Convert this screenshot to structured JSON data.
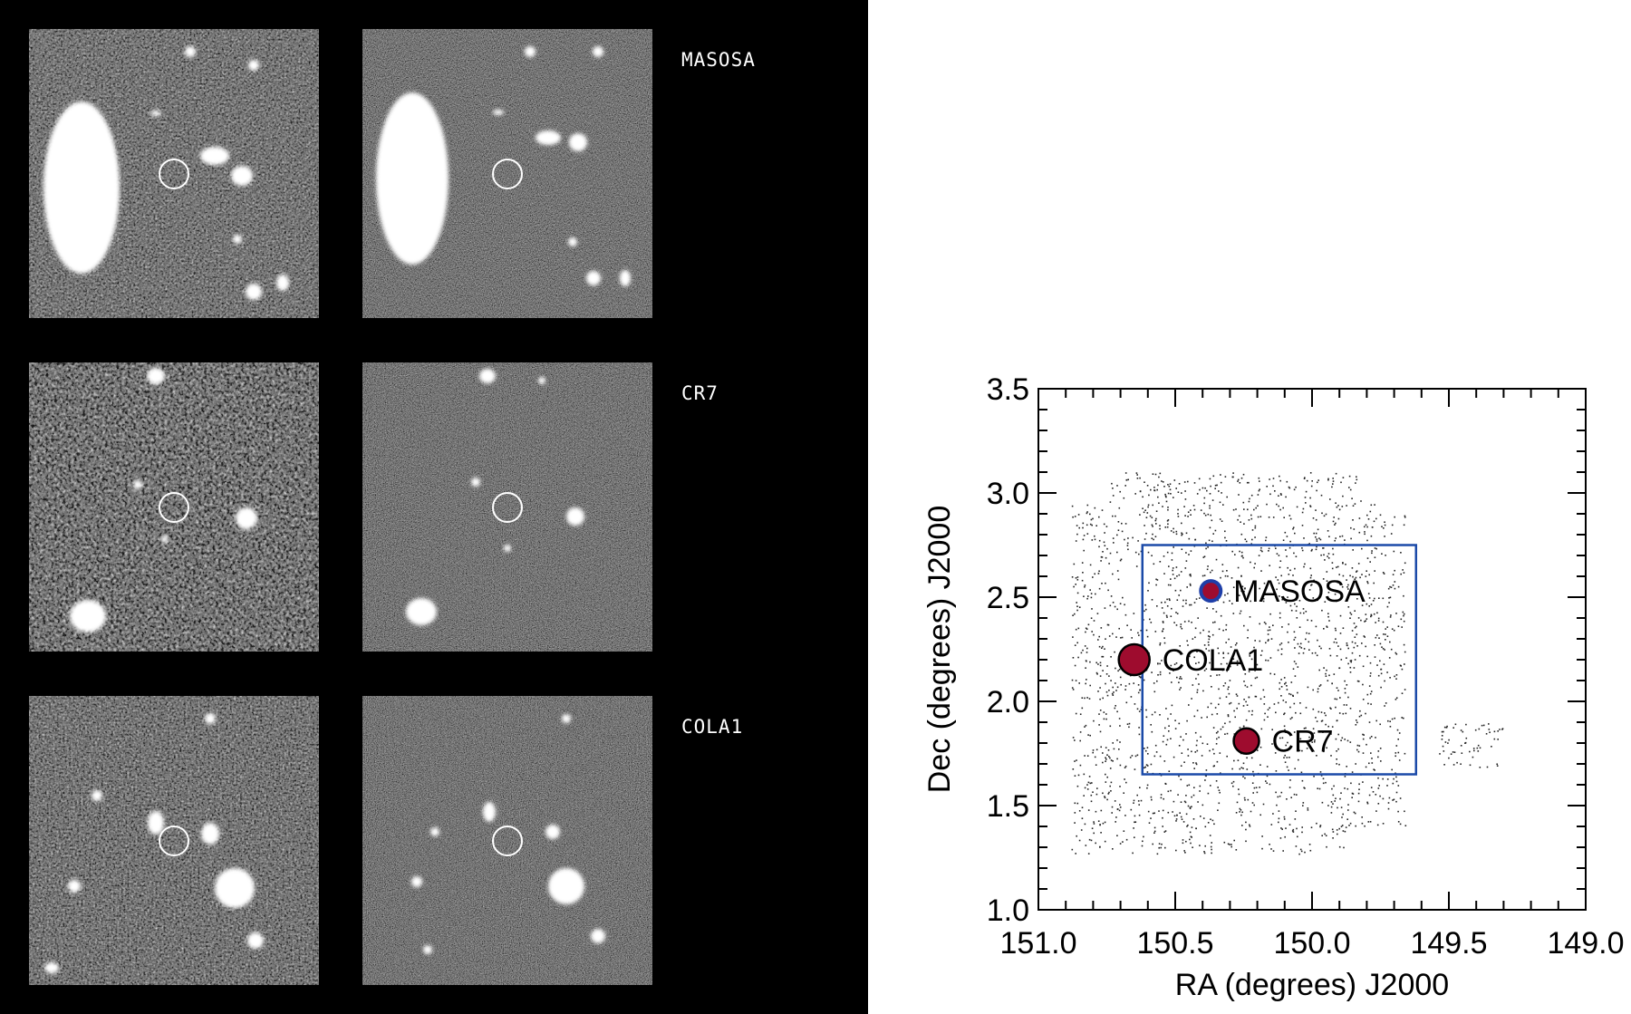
{
  "stamps": {
    "rows": [
      {
        "label": "MASOSA"
      },
      {
        "label": "CR7"
      },
      {
        "label": "COLA1"
      }
    ]
  },
  "colors": {
    "marker_fill": "#9e0c2e",
    "masosa_ring": "#1f3fa8",
    "box_color": "#1b4aa8",
    "point_color": "#222222"
  },
  "chart_data": {
    "type": "scatter",
    "title": "",
    "xlabel": "RA (degrees) J2000",
    "ylabel": "Dec (degrees) J2000",
    "xlim": [
      151.0,
      149.0
    ],
    "ylim": [
      1.0,
      3.5
    ],
    "x_reversed": true,
    "xticks": [
      "151.0",
      "150.5",
      "150.0",
      "149.5",
      "149.0"
    ],
    "yticks": [
      "1.0",
      "1.5",
      "2.0",
      "2.5",
      "3.0",
      "3.5"
    ],
    "grid": false,
    "region_box": {
      "ra": [
        150.62,
        149.62
      ],
      "dec": [
        1.65,
        2.75
      ]
    },
    "objects": [
      {
        "name": "MASOSA",
        "ra": 150.37,
        "dec": 2.53,
        "size": "small"
      },
      {
        "name": "COLA1",
        "ra": 150.65,
        "dec": 2.2,
        "size": "large"
      },
      {
        "name": "CR7",
        "ra": 150.24,
        "dec": 1.81,
        "size": "medium"
      }
    ]
  }
}
